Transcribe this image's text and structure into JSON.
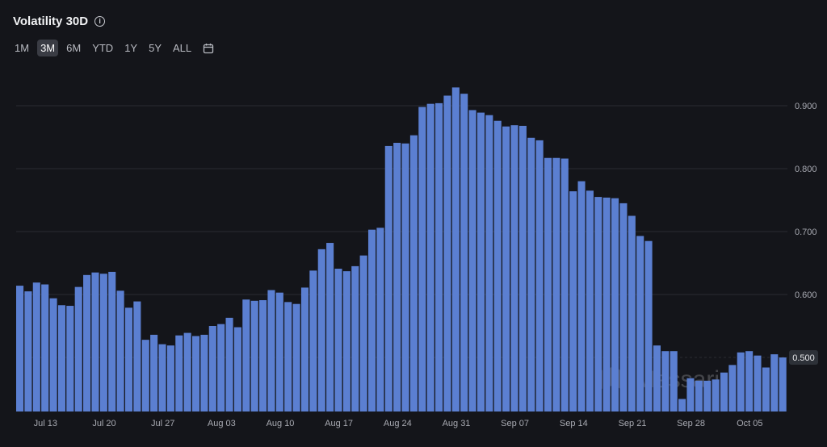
{
  "header": {
    "title": "Volatility 30D",
    "info_icon": "info-icon"
  },
  "ranges": [
    "1M",
    "3M",
    "6M",
    "YTD",
    "1Y",
    "5Y",
    "ALL"
  ],
  "active_range": "3M",
  "calendar_icon": "calendar-icon",
  "watermark": "Messari",
  "colors": {
    "bar": "#5b7fd1",
    "background": "#14151a",
    "grid": "#2a2c33",
    "label": "#a8aab2"
  },
  "chart_data": {
    "type": "bar",
    "title": "Volatility 30D",
    "xlabel": "",
    "ylabel": "",
    "ylim": [
      0.42,
      0.94
    ],
    "yticks": [
      0.5,
      0.6,
      0.7,
      0.8,
      0.9
    ],
    "ytick_labels": [
      "0.500",
      "0.600",
      "0.700",
      "0.800",
      "0.900"
    ],
    "xtick_labels": [
      "Jul 13",
      "Jul 20",
      "Jul 27",
      "Aug 03",
      "Aug 10",
      "Aug 17",
      "Aug 24",
      "Aug 31",
      "Sep 07",
      "Sep 14",
      "Sep 21",
      "Sep 28",
      "Oct 05"
    ],
    "last_value_label": "0.500",
    "grid": true,
    "series": [
      {
        "values": [
          0.614,
          0.605,
          0.619,
          0.616,
          0.594,
          0.583,
          0.582,
          0.612,
          0.631,
          0.635,
          0.633,
          0.636,
          0.606,
          0.579,
          0.589,
          0.528,
          0.536,
          0.521,
          0.519,
          0.535,
          0.539,
          0.534,
          0.536,
          0.55,
          0.553,
          0.563,
          0.548,
          0.592,
          0.59,
          0.591,
          0.607,
          0.603,
          0.588,
          0.585,
          0.611,
          0.638,
          0.672,
          0.682,
          0.641,
          0.637,
          0.645,
          0.662,
          0.703,
          0.706,
          0.836,
          0.841,
          0.84,
          0.853,
          0.898,
          0.903,
          0.904,
          0.916,
          0.929,
          0.919,
          0.893,
          0.889,
          0.885,
          0.876,
          0.867,
          0.869,
          0.868,
          0.849,
          0.845,
          0.817,
          0.817,
          0.816,
          0.764,
          0.78,
          0.765,
          0.755,
          0.754,
          0.753,
          0.745,
          0.725,
          0.693,
          0.685,
          0.519,
          0.51,
          0.51,
          0.434,
          0.467,
          0.463,
          0.463,
          0.465,
          0.476,
          0.488,
          0.508,
          0.51,
          0.503,
          0.484,
          0.505,
          0.5
        ]
      }
    ]
  }
}
